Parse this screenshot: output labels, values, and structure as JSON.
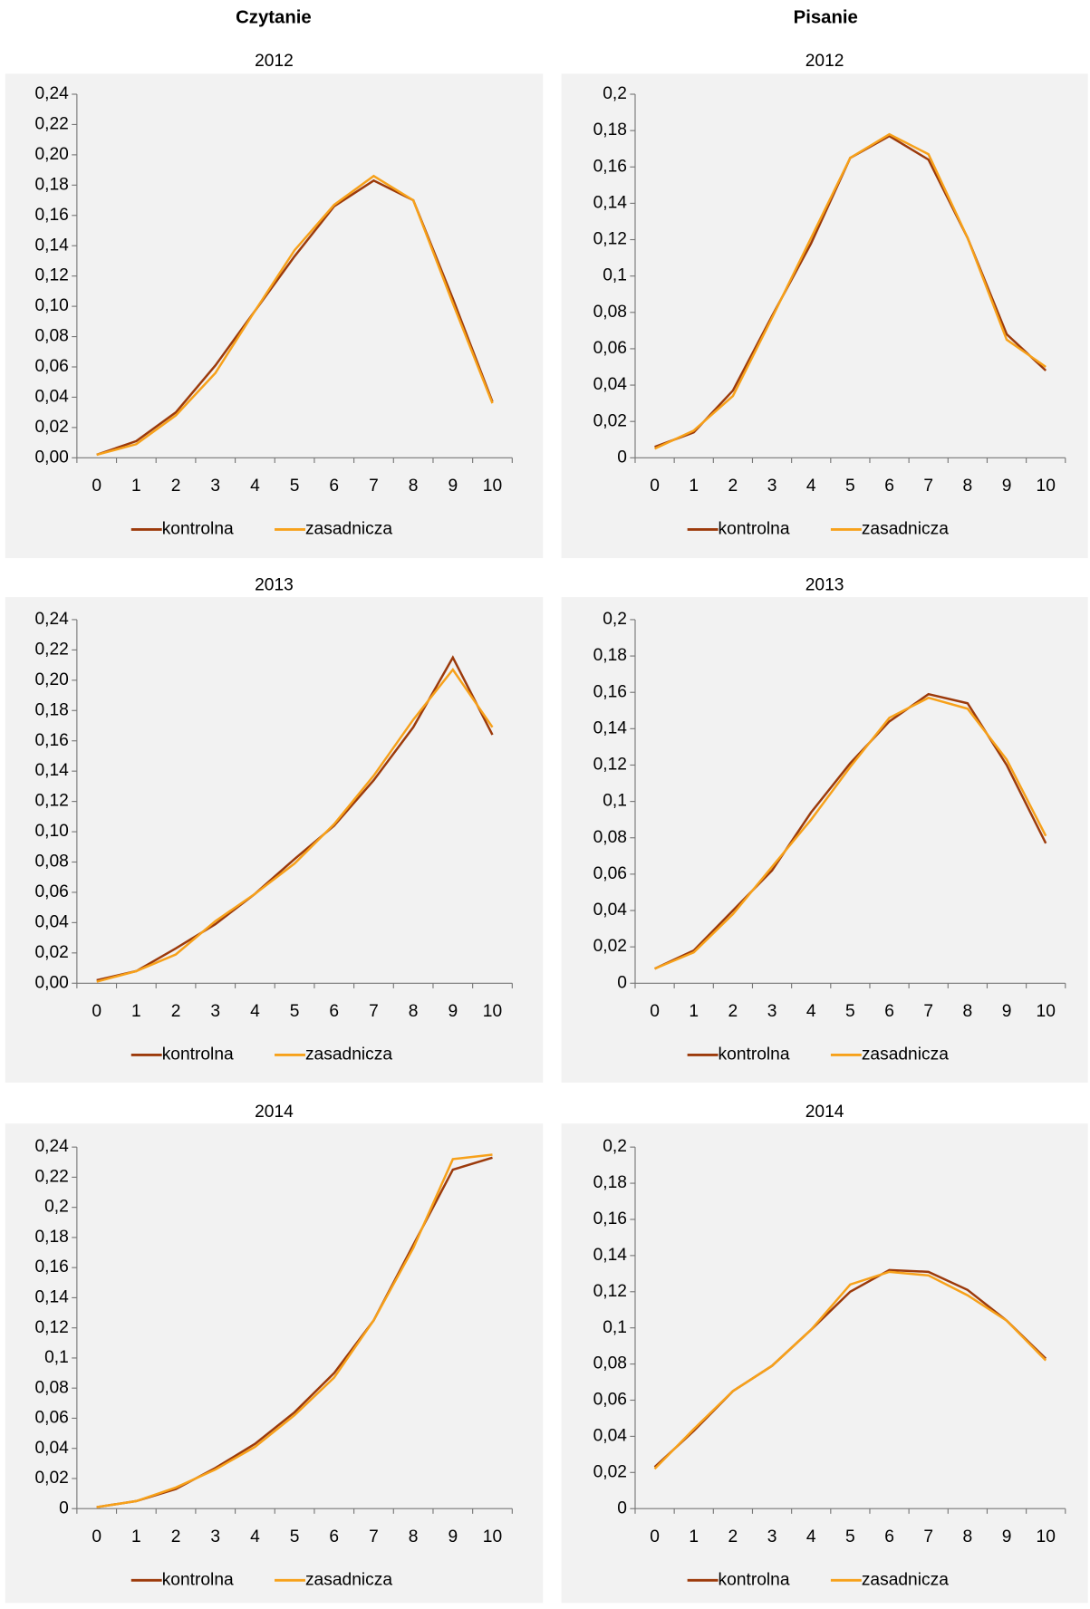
{
  "headers": [
    "Czytanie",
    "Pisanie"
  ],
  "chart_data": [
    {
      "type": "line",
      "title": "2012",
      "categories": [
        "0",
        "1",
        "2",
        "3",
        "4",
        "5",
        "6",
        "7",
        "8",
        "9",
        "10"
      ],
      "series": [
        {
          "name": "kontrolna",
          "color": "#9c3a0b",
          "values": [
            0.002,
            0.011,
            0.03,
            0.061,
            0.097,
            0.133,
            0.166,
            0.183,
            0.17,
            0.105,
            0.037
          ]
        },
        {
          "name": "zasadnicza",
          "color": "#f7a11a",
          "values": [
            0.002,
            0.009,
            0.028,
            0.056,
            0.097,
            0.137,
            0.167,
            0.186,
            0.17,
            0.102,
            0.036
          ]
        }
      ],
      "ylim": [
        0,
        0.24
      ],
      "yticks": [
        {
          "value": 0,
          "label": "0,00"
        },
        {
          "value": 0.02,
          "label": "0,02"
        },
        {
          "value": 0.04,
          "label": "0,04"
        },
        {
          "value": 0.06,
          "label": "0,06"
        },
        {
          "value": 0.08,
          "label": "0,08"
        },
        {
          "value": 0.1,
          "label": "0,10"
        },
        {
          "value": 0.12,
          "label": "0,12"
        },
        {
          "value": 0.14,
          "label": "0,14"
        },
        {
          "value": 0.16,
          "label": "0,16"
        },
        {
          "value": 0.18,
          "label": "0,18"
        },
        {
          "value": 0.2,
          "label": "0,20"
        },
        {
          "value": 0.22,
          "label": "0,22"
        },
        {
          "value": 0.24,
          "label": "0,24"
        }
      ],
      "legend": "bottom",
      "grid": false
    },
    {
      "type": "line",
      "title": "2012",
      "categories": [
        "0",
        "1",
        "2",
        "3",
        "4",
        "5",
        "6",
        "7",
        "8",
        "9",
        "10"
      ],
      "series": [
        {
          "name": "kontrolna",
          "color": "#9c3a0b",
          "values": [
            0.006,
            0.014,
            0.037,
            0.078,
            0.118,
            0.165,
            0.177,
            0.164,
            0.121,
            0.068,
            0.048
          ]
        },
        {
          "name": "zasadnicza",
          "color": "#f7a11a",
          "values": [
            0.005,
            0.015,
            0.034,
            0.077,
            0.121,
            0.165,
            0.178,
            0.167,
            0.121,
            0.065,
            0.05
          ]
        }
      ],
      "ylim": [
        0,
        0.2
      ],
      "yticks": [
        0,
        {
          "value": 0.02,
          "label": "0,02"
        },
        {
          "value": 0.04,
          "label": "0,04"
        },
        {
          "value": 0.06,
          "label": "0,06"
        },
        {
          "value": 0.08,
          "label": "0,08"
        },
        {
          "value": 0.1,
          "label": "0,1"
        },
        {
          "value": 0.12,
          "label": "0,12"
        },
        {
          "value": 0.14,
          "label": "0,14"
        },
        {
          "value": 0.16,
          "label": "0,16"
        },
        {
          "value": 0.18,
          "label": "0,18"
        },
        {
          "value": 0.2,
          "label": "0,2"
        }
      ],
      "legend": "bottom",
      "grid": false
    },
    {
      "type": "line",
      "title": "2013",
      "categories": [
        "0",
        "1",
        "2",
        "3",
        "4",
        "5",
        "6",
        "7",
        "8",
        "9",
        "10"
      ],
      "series": [
        {
          "name": "kontrolna",
          "color": "#9c3a0b",
          "values": [
            0.002,
            0.008,
            0.023,
            0.039,
            0.059,
            0.082,
            0.104,
            0.134,
            0.169,
            0.215,
            0.164
          ]
        },
        {
          "name": "zasadnicza",
          "color": "#f7a11a",
          "values": [
            0.001,
            0.008,
            0.019,
            0.041,
            0.059,
            0.079,
            0.105,
            0.137,
            0.174,
            0.207,
            0.169
          ]
        }
      ],
      "ylim": [
        0,
        0.24
      ],
      "yticks": [
        {
          "value": 0,
          "label": "0,00"
        },
        {
          "value": 0.02,
          "label": "0,02"
        },
        {
          "value": 0.04,
          "label": "0,04"
        },
        {
          "value": 0.06,
          "label": "0,06"
        },
        {
          "value": 0.08,
          "label": "0,08"
        },
        {
          "value": 0.1,
          "label": "0,10"
        },
        {
          "value": 0.12,
          "label": "0,12"
        },
        {
          "value": 0.14,
          "label": "0,14"
        },
        {
          "value": 0.16,
          "label": "0,16"
        },
        {
          "value": 0.18,
          "label": "0,18"
        },
        {
          "value": 0.2,
          "label": "0,20"
        },
        {
          "value": 0.22,
          "label": "0,22"
        },
        {
          "value": 0.24,
          "label": "0,24"
        }
      ],
      "legend": "bottom",
      "grid": false
    },
    {
      "type": "line",
      "title": "2013",
      "categories": [
        "0",
        "1",
        "2",
        "3",
        "4",
        "5",
        "6",
        "7",
        "8",
        "9",
        "10"
      ],
      "series": [
        {
          "name": "kontrolna",
          "color": "#9c3a0b",
          "values": [
            0.008,
            0.018,
            0.04,
            0.062,
            0.094,
            0.121,
            0.144,
            0.159,
            0.154,
            0.12,
            0.077
          ]
        },
        {
          "name": "zasadnicza",
          "color": "#f7a11a",
          "values": [
            0.008,
            0.017,
            0.038,
            0.064,
            0.09,
            0.119,
            0.146,
            0.157,
            0.151,
            0.123,
            0.081
          ]
        }
      ],
      "ylim": [
        0,
        0.2
      ],
      "yticks": [
        0,
        {
          "value": 0.02,
          "label": "0,02"
        },
        {
          "value": 0.04,
          "label": "0,04"
        },
        {
          "value": 0.06,
          "label": "0,06"
        },
        {
          "value": 0.08,
          "label": "0,08"
        },
        {
          "value": 0.1,
          "label": "0,1"
        },
        {
          "value": 0.12,
          "label": "0,12"
        },
        {
          "value": 0.14,
          "label": "0,14"
        },
        {
          "value": 0.16,
          "label": "0,16"
        },
        {
          "value": 0.18,
          "label": "0,18"
        },
        {
          "value": 0.2,
          "label": "0,2"
        }
      ],
      "legend": "bottom",
      "grid": false
    },
    {
      "type": "line",
      "title": "2014",
      "categories": [
        "0",
        "1",
        "2",
        "3",
        "4",
        "5",
        "6",
        "7",
        "8",
        "9",
        "10"
      ],
      "series": [
        {
          "name": "kontrolna",
          "color": "#9c3a0b",
          "values": [
            0.001,
            0.005,
            0.013,
            0.027,
            0.043,
            0.064,
            0.09,
            0.125,
            0.175,
            0.225,
            0.233
          ]
        },
        {
          "name": "zasadnicza",
          "color": "#f7a11a",
          "values": [
            0.001,
            0.005,
            0.014,
            0.026,
            0.041,
            0.062,
            0.087,
            0.125,
            0.173,
            0.232,
            0.235
          ]
        }
      ],
      "ylim": [
        0,
        0.24
      ],
      "yticks": [
        0,
        {
          "value": 0.02,
          "label": "0,02"
        },
        {
          "value": 0.04,
          "label": "0,04"
        },
        {
          "value": 0.06,
          "label": "0,06"
        },
        {
          "value": 0.08,
          "label": "0,08"
        },
        {
          "value": 0.1,
          "label": "0,1"
        },
        {
          "value": 0.12,
          "label": "0,12"
        },
        {
          "value": 0.14,
          "label": "0,14"
        },
        {
          "value": 0.16,
          "label": "0,16"
        },
        {
          "value": 0.18,
          "label": "0,18"
        },
        {
          "value": 0.2,
          "label": "0,2"
        },
        {
          "value": 0.22,
          "label": "0,22"
        },
        {
          "value": 0.24,
          "label": "0,24"
        }
      ],
      "legend": "bottom",
      "grid": false
    },
    {
      "type": "line",
      "title": "2014",
      "categories": [
        "0",
        "1",
        "2",
        "3",
        "4",
        "5",
        "6",
        "7",
        "8",
        "9",
        "10"
      ],
      "series": [
        {
          "name": "kontrolna",
          "color": "#9c3a0b",
          "values": [
            0.023,
            0.043,
            0.065,
            0.079,
            0.099,
            0.12,
            0.132,
            0.131,
            0.121,
            0.104,
            0.083
          ]
        },
        {
          "name": "zasadnicza",
          "color": "#f7a11a",
          "values": [
            0.022,
            0.044,
            0.065,
            0.079,
            0.099,
            0.124,
            0.131,
            0.129,
            0.118,
            0.104,
            0.082
          ]
        }
      ],
      "ylim": [
        0,
        0.2
      ],
      "yticks": [
        0,
        {
          "value": 0.02,
          "label": "0,02"
        },
        {
          "value": 0.04,
          "label": "0,04"
        },
        {
          "value": 0.06,
          "label": "0,06"
        },
        {
          "value": 0.08,
          "label": "0,08"
        },
        {
          "value": 0.1,
          "label": "0,1"
        },
        {
          "value": 0.12,
          "label": "0,12"
        },
        {
          "value": 0.14,
          "label": "0,14"
        },
        {
          "value": 0.16,
          "label": "0,16"
        },
        {
          "value": 0.18,
          "label": "0,18"
        },
        {
          "value": 0.2,
          "label": "0,2"
        }
      ],
      "legend": "bottom",
      "grid": false
    }
  ]
}
